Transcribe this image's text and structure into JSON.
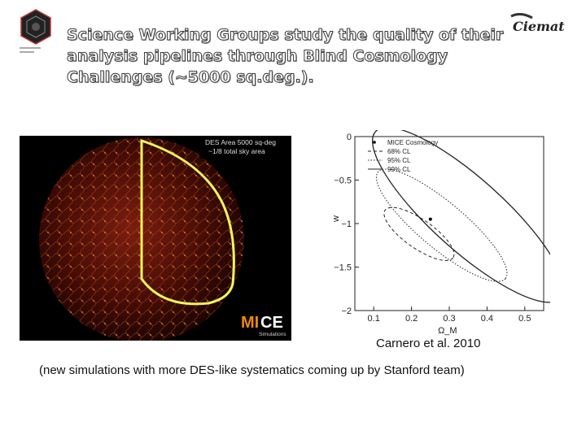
{
  "slide": {
    "title_lines": [
      "Science Working Groups study the quality of their",
      "analysis pipelines through Blind Cosmology",
      "Challenges (~5000 sq.deg.)."
    ],
    "caption": "Carnero et al. 2010",
    "note": "(new simulations with more DES-like systematics coming up by Stanford team)",
    "logo_right_text": "Ciemat"
  },
  "sky_map": {
    "label_line1": "DES Area 5000 sq-deg",
    "label_line2": "~1/8 total sky area",
    "brand_mi": "MI",
    "brand_ce": "CE",
    "brand_sub": "Simulations"
  },
  "chart_data": {
    "type": "scatter",
    "xlabel": "Ω_M",
    "ylabel": "w",
    "xlim": [
      0.05,
      0.55
    ],
    "ylim": [
      -2,
      0
    ],
    "x_ticks": [
      "0.1",
      "0.2",
      "0.3",
      "0.4",
      "0.5"
    ],
    "y_ticks": [
      "0",
      "−0.5",
      "−1",
      "−1.5",
      "−2"
    ],
    "legend": [
      "MICE Cosmology",
      "68% CL",
      "95% CL",
      "99% CL"
    ],
    "legend_position": "top-right",
    "point": {
      "x": 0.25,
      "y": -0.95
    },
    "contours": [
      {
        "name": "68% CL",
        "style": "dashed",
        "cx": 0.22,
        "cy": -1.12,
        "rx": 0.11,
        "ry": 0.3,
        "angle_deg": 35
      },
      {
        "name": "95% CL",
        "style": "dotted",
        "cx": 0.28,
        "cy": -1.02,
        "rx": 0.22,
        "ry": 0.48,
        "angle_deg": 40
      },
      {
        "name": "99% CL",
        "style": "solid",
        "cx": 0.35,
        "cy": -0.9,
        "rx": 0.33,
        "ry": 0.75,
        "angle_deg": 42
      }
    ]
  }
}
